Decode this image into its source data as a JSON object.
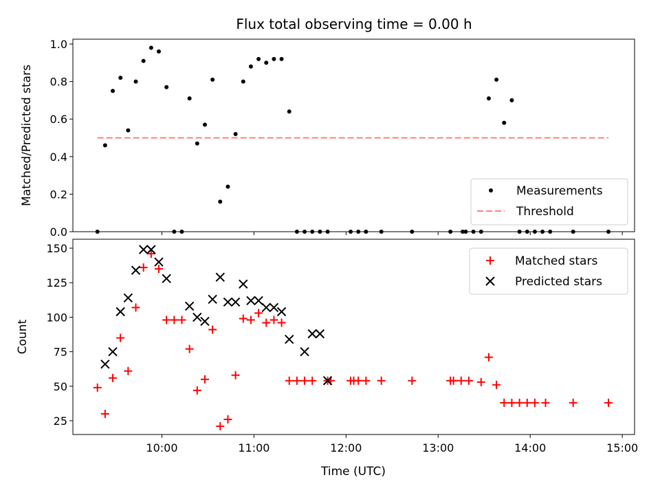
{
  "chart_data": [
    {
      "type": "scatter",
      "title": "Flux total observing time = 0.00 h",
      "ylabel": "Matched/Predicted stars",
      "xlabel": "",
      "ylim": [
        0,
        1.0
      ],
      "yticks": [
        0.0,
        0.2,
        0.4,
        0.6,
        0.8,
        1.0
      ],
      "ytick_labels": [
        "0.0",
        "0.2",
        "0.4",
        "0.6",
        "0.8",
        "1.0"
      ],
      "legend_position": "bottom-right",
      "threshold": {
        "name": "Threshold",
        "value": 0.5,
        "x_range": [
          "09:18",
          "14:51"
        ],
        "color": "#ff7f7f"
      },
      "series": [
        {
          "name": "Measurements",
          "marker": "dot",
          "color": "#000000",
          "x": [
            "09:18",
            "09:23",
            "09:28",
            "09:33",
            "09:38",
            "09:43",
            "09:48",
            "09:53",
            "09:58",
            "10:03",
            "10:08",
            "10:13",
            "10:18",
            "10:23",
            "10:28",
            "10:33",
            "10:38",
            "10:43",
            "10:48",
            "10:53",
            "10:58",
            "11:03",
            "11:08",
            "11:13",
            "11:18",
            "11:23",
            "11:28",
            "11:33",
            "11:38",
            "11:43",
            "11:48",
            "12:03",
            "12:08",
            "12:13",
            "12:23",
            "12:43",
            "13:08",
            "13:16",
            "13:18",
            "13:23",
            "13:28",
            "13:33",
            "13:38",
            "13:43",
            "13:48",
            "13:53",
            "13:58",
            "14:03",
            "14:08",
            "14:13",
            "14:28",
            "14:51"
          ],
          "y": [
            0.0,
            0.46,
            0.75,
            0.82,
            0.54,
            0.8,
            0.91,
            0.98,
            0.96,
            0.77,
            0.0,
            0.0,
            0.71,
            0.47,
            0.57,
            0.81,
            0.16,
            0.24,
            0.52,
            0.8,
            0.88,
            0.92,
            0.9,
            0.92,
            0.92,
            0.64,
            0.0,
            0.0,
            0.0,
            0.0,
            0.0,
            0.0,
            0.0,
            0.0,
            0.0,
            0.0,
            0.0,
            0.0,
            0.0,
            0.0,
            0.0,
            0.71,
            0.81,
            0.58,
            0.7,
            0.0,
            0.0,
            0.0,
            0.0,
            0.0,
            0.0,
            0.0
          ]
        }
      ]
    },
    {
      "type": "scatter",
      "ylabel": "Count",
      "xlabel": "Time (UTC)",
      "ylim": [
        15,
        155
      ],
      "yticks": [
        25,
        50,
        75,
        100,
        125,
        150
      ],
      "ytick_labels": [
        "25",
        "50",
        "75",
        "100",
        "125",
        "150"
      ],
      "xlim": [
        "09:02",
        "15:08"
      ],
      "xticks": [
        "10:00",
        "11:00",
        "12:00",
        "13:00",
        "14:00",
        "15:00"
      ],
      "legend_position": "top-right",
      "series": [
        {
          "name": "Matched stars",
          "marker": "plus",
          "color": "#ff0000",
          "x": [
            "09:18",
            "09:23",
            "09:28",
            "09:33",
            "09:38",
            "09:43",
            "09:48",
            "09:53",
            "09:58",
            "10:03",
            "10:08",
            "10:13",
            "10:18",
            "10:23",
            "10:28",
            "10:33",
            "10:38",
            "10:43",
            "10:48",
            "10:53",
            "10:58",
            "11:03",
            "11:08",
            "11:13",
            "11:18",
            "11:23",
            "11:28",
            "11:33",
            "11:38",
            "11:48",
            "11:50",
            "12:03",
            "12:05",
            "12:08",
            "12:13",
            "12:23",
            "12:43",
            "13:08",
            "13:10",
            "13:15",
            "13:20",
            "13:28",
            "13:33",
            "13:38",
            "13:43",
            "13:48",
            "13:53",
            "13:58",
            "14:03",
            "14:10",
            "14:28",
            "14:51"
          ],
          "y": [
            49,
            30,
            56,
            85,
            61,
            107,
            136,
            146,
            135,
            98,
            98,
            98,
            77,
            47,
            55,
            91,
            21,
            26,
            58,
            99,
            98,
            103,
            96,
            98,
            96,
            54,
            54,
            54,
            54,
            54,
            54,
            54,
            54,
            54,
            54,
            54,
            54,
            54,
            54,
            54,
            54,
            53,
            71,
            51,
            38,
            38,
            38,
            38,
            38,
            38,
            38,
            38
          ]
        },
        {
          "name": "Predicted stars",
          "marker": "x",
          "color": "#000000",
          "x": [
            "09:23",
            "09:28",
            "09:33",
            "09:38",
            "09:43",
            "09:48",
            "09:53",
            "09:58",
            "10:03",
            "10:18",
            "10:23",
            "10:28",
            "10:33",
            "10:38",
            "10:43",
            "10:48",
            "10:53",
            "10:58",
            "11:03",
            "11:08",
            "11:13",
            "11:18",
            "11:23",
            "11:33",
            "11:38",
            "11:43",
            "11:48"
          ],
          "y": [
            66,
            75,
            104,
            114,
            134,
            149,
            149,
            140,
            128,
            108,
            100,
            97,
            113,
            129,
            111,
            111,
            124,
            112,
            112,
            107,
            107,
            104,
            84,
            75,
            88,
            88,
            54
          ]
        }
      ]
    }
  ]
}
